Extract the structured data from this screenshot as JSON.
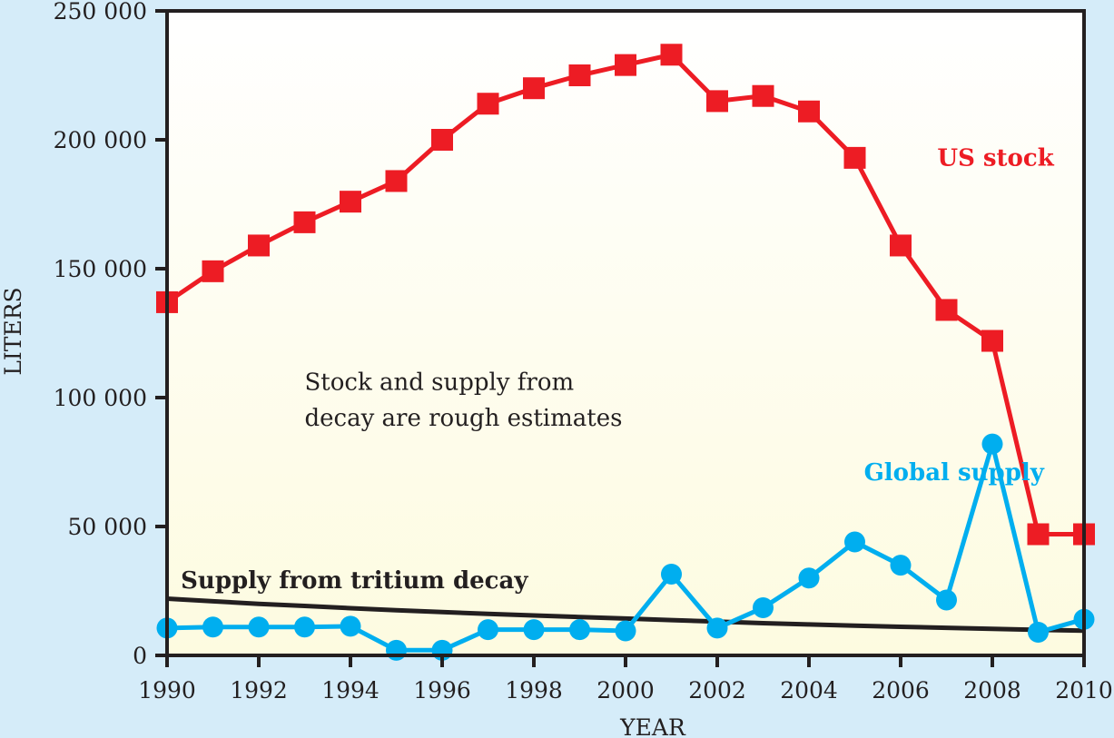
{
  "chart_data": {
    "type": "line",
    "title": "",
    "xlabel": "YEAR",
    "ylabel": "LITERS",
    "xlim": [
      1990,
      2010
    ],
    "ylim": [
      0,
      250000
    ],
    "grid": false,
    "x_ticks": [
      1990,
      1992,
      1994,
      1996,
      1998,
      2000,
      2002,
      2004,
      2006,
      2008,
      2010
    ],
    "x_tick_labels": [
      "1990",
      "1992",
      "1994",
      "1996",
      "1998",
      "2000",
      "2002",
      "2004",
      "2006",
      "2008",
      "2010"
    ],
    "y_ticks": [
      0,
      50000,
      100000,
      150000,
      200000,
      250000
    ],
    "y_tick_labels": [
      "0",
      "50 000",
      "100 000",
      "150 000",
      "200 000",
      "250 000"
    ],
    "x": [
      1990,
      1991,
      1992,
      1993,
      1994,
      1995,
      1996,
      1997,
      1998,
      1999,
      2000,
      2001,
      2002,
      2003,
      2004,
      2005,
      2006,
      2007,
      2008,
      2009,
      2010
    ],
    "series": [
      {
        "name": "US stock",
        "color": "#ed1c24",
        "marker": "square",
        "values": [
          137000,
          149000,
          159000,
          168000,
          176000,
          184000,
          200000,
          214000,
          220000,
          225000,
          229000,
          233000,
          215000,
          217000,
          211000,
          193000,
          159000,
          134000,
          122000,
          47000,
          47000
        ]
      },
      {
        "name": "Global supply",
        "color": "#00aeef",
        "marker": "circle",
        "values": [
          10600,
          11000,
          11000,
          11000,
          11300,
          2000,
          2000,
          10000,
          10000,
          10000,
          9500,
          31500,
          10600,
          18500,
          30000,
          44000,
          35000,
          21500,
          82000,
          9000,
          14000
        ]
      },
      {
        "name": "Supply from tritium decay",
        "color": "#231f20",
        "marker": "none",
        "values": [
          22000,
          21000,
          20000,
          19200,
          18300,
          17500,
          16800,
          16100,
          15500,
          14900,
          14300,
          13700,
          13100,
          12500,
          12000,
          11500,
          11100,
          10700,
          10300,
          9900,
          9600
        ]
      }
    ],
    "annotations": [
      {
        "text": "US stock",
        "color": "#ed1c24",
        "near": [
          2006.8,
          190000
        ]
      },
      {
        "text": "Global supply",
        "color": "#00aeef",
        "near": [
          2005.2,
          68000
        ]
      },
      {
        "text": "Supply from tritium decay",
        "color": "#231f20",
        "near": [
          1990.3,
          26000
        ]
      },
      {
        "text": "Stock and supply from",
        "color": "#231f20",
        "near": [
          1993.0,
          103000
        ]
      },
      {
        "text": "decay are rough estimates",
        "color": "#231f20",
        "near": [
          1993.0,
          89000
        ]
      }
    ],
    "colors": {
      "page_background": "#d5ecf9",
      "plot_background_top": "#ffffff",
      "plot_background_bottom": "#fdfbe0",
      "axis": "#231f20"
    }
  }
}
